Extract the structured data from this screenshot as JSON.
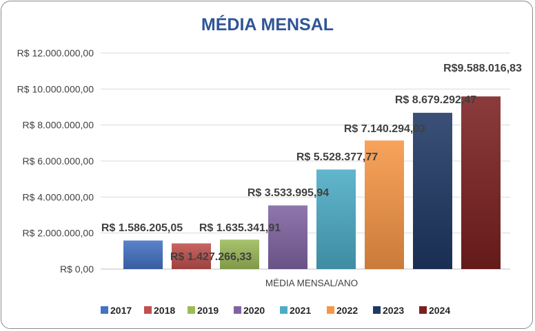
{
  "chart_data": {
    "type": "bar",
    "title": "MÉDIA MENSAL",
    "xlabel": "MÉDIA MENSAL/ANO",
    "ylabel": "",
    "ylim": [
      0,
      12000000
    ],
    "yticks": [
      0,
      2000000,
      4000000,
      6000000,
      8000000,
      10000000,
      12000000
    ],
    "ytick_labels": [
      "R$ 0,00",
      "R$ 2.000.000,00",
      "R$ 4.000.000,00",
      "R$ 6.000.000,00",
      "R$ 8.000.000,00",
      "R$ 10.000.000,00",
      "R$ 12.000.000,00"
    ],
    "grid": true,
    "legend_position": "bottom",
    "series": [
      {
        "name": "2017",
        "value": 1586205.05,
        "label": "R$ 1.586.205,05",
        "color": "#4472c4"
      },
      {
        "name": "2018",
        "value": 1427266.33,
        "label": "R$ 1.427.266,33",
        "color": "#c0504d"
      },
      {
        "name": "2019",
        "value": 1635341.91,
        "label": "R$ 1.635.341,91",
        "color": "#9bbb59"
      },
      {
        "name": "2020",
        "value": 3533995.94,
        "label": "R$ 3.533.995,94",
        "color": "#8064a2"
      },
      {
        "name": "2021",
        "value": 5528377.77,
        "label": "R$ 5.528.377,77",
        "color": "#4bacc6"
      },
      {
        "name": "2022",
        "value": 7140294.03,
        "label": "R$ 7.140.294,03",
        "color": "#f79646"
      },
      {
        "name": "2023",
        "value": 8679292.47,
        "label": "R$ 8.679.292,47",
        "color": "#1f3864"
      },
      {
        "name": "2024",
        "value": 9588016.83,
        "label": "R$9.588.016,83",
        "color": "#7b2020"
      }
    ]
  }
}
